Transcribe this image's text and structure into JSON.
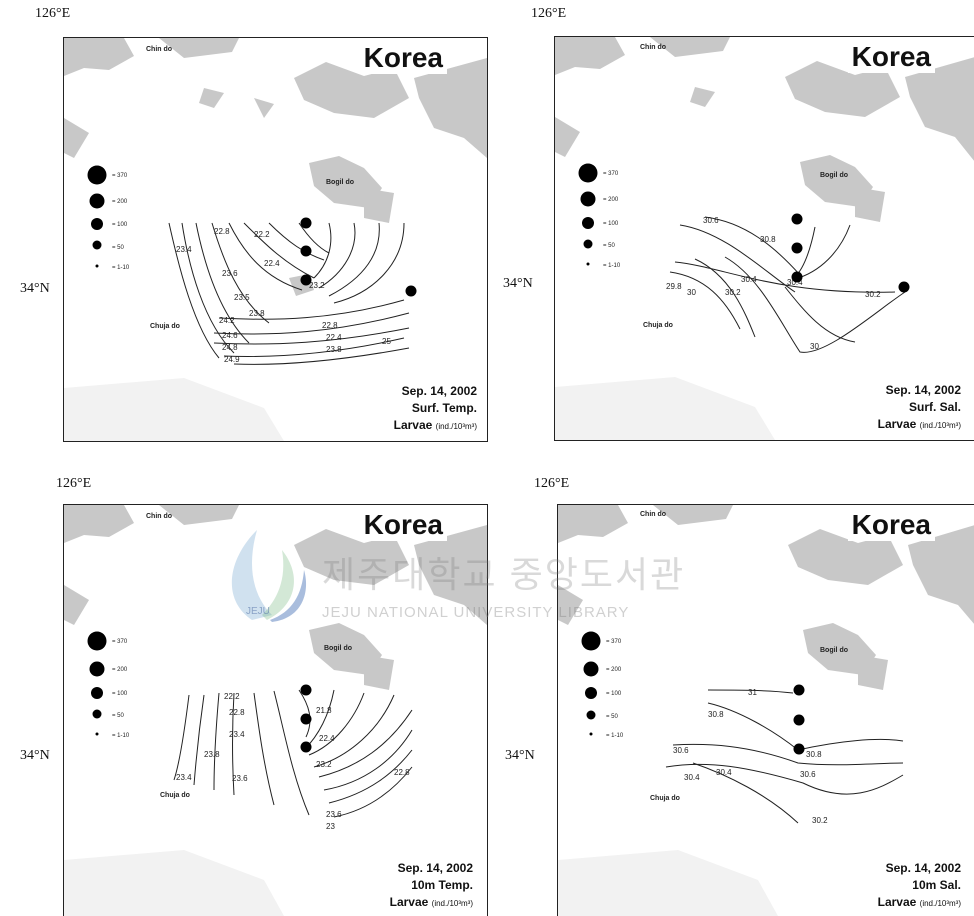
{
  "panels": [
    {
      "lon_label": "126°E",
      "lat_label": "34°N",
      "title": "Korea",
      "places": {
        "a": "Chin do",
        "b": "Bogil do",
        "c": "Chuja do"
      },
      "date": "Sep. 14, 2002",
      "variable": "Surf. Temp.",
      "larvae": "Larvae",
      "units": "(ind./10³m³)",
      "contour_labels": [
        "22.8",
        "22.2",
        "23.4",
        "22.4",
        "23.6",
        "23.5",
        "23.2",
        "23.8",
        "24.2",
        "24.6",
        "24.8",
        "24.9",
        "25",
        "22.8",
        "22.4",
        "23.8"
      ],
      "legend": [
        "= 370",
        "= 200",
        "= 100",
        "= 50",
        "= 1-10"
      ]
    },
    {
      "lon_label": "126°E",
      "lat_label": "34°N",
      "title": "Korea",
      "places": {
        "a": "Chin do",
        "b": "Bogil do",
        "c": "Chuja do"
      },
      "date": "Sep. 14, 2002",
      "variable": "Surf. Sal.",
      "larvae": "Larvae",
      "units": "(ind./10³m³)",
      "contour_labels": [
        "30.6",
        "30.8",
        "30.4",
        "30.2",
        "29.8",
        "30",
        "30.4",
        "30.2",
        "30"
      ],
      "legend": [
        "= 370",
        "= 200",
        "= 100",
        "= 50",
        "= 1-10"
      ]
    },
    {
      "lon_label": "126°E",
      "lat_label": "34°N",
      "title": "Korea",
      "places": {
        "a": "Chin do",
        "b": "Bogil do",
        "c": "Chuja do"
      },
      "date": "Sep. 14, 2002",
      "variable": "10m Temp.",
      "larvae": "Larvae",
      "units": "(ind./10³m³)",
      "contour_labels": [
        "22.2",
        "21.8",
        "22.8",
        "23.4",
        "22.4",
        "23.8",
        "23.6",
        "23.2",
        "22.8",
        "23.4",
        "23.6",
        "23"
      ],
      "legend": [
        "= 370",
        "= 200",
        "= 100",
        "= 50",
        "= 1-10"
      ]
    },
    {
      "lon_label": "126°E",
      "lat_label": "34°N",
      "title": "Korea",
      "places": {
        "a": "Chin do",
        "b": "Bogil do",
        "c": "Chuja do"
      },
      "date": "Sep. 14, 2002",
      "variable": "10m Sal.",
      "larvae": "Larvae",
      "units": "(ind./10³m³)",
      "contour_labels": [
        "31",
        "30.8",
        "30.8",
        "30.6",
        "30.6",
        "30.4",
        "30.4",
        "30.2"
      ],
      "legend": [
        "= 370",
        "= 200",
        "= 100",
        "= 50",
        "= 1-10"
      ]
    }
  ],
  "watermark": {
    "title": "제주대학교 중앙도서관",
    "subtitle": "JEJU NATIONAL UNIVERSITY LIBRARY",
    "logo_text": "JEJU"
  },
  "colors": {
    "land": "#c8c8c8",
    "ink": "#111111"
  }
}
